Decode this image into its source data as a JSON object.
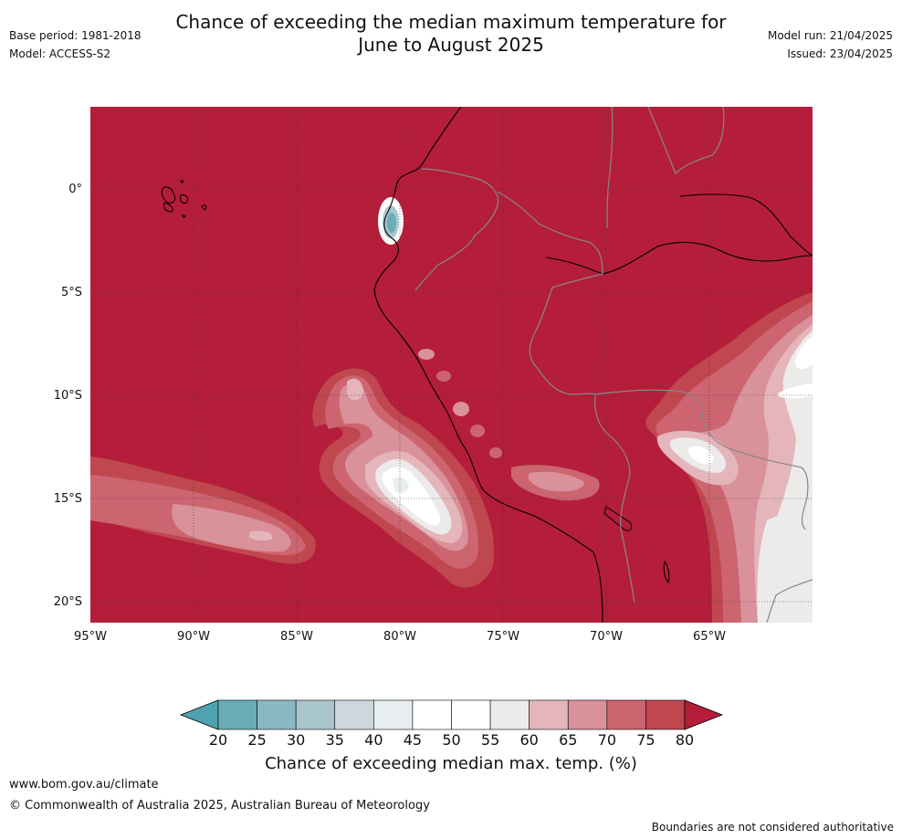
{
  "header": {
    "title_line1": "Chance of exceeding the median maximum temperature for",
    "title_line2": "June to August 2025",
    "base_period": "Base period: 1981-2018",
    "model": "Model: ACCESS-S2",
    "model_run": "Model run: 21/04/2025",
    "issued": "Issued: 23/04/2025"
  },
  "map": {
    "lat_labels": [
      "0°",
      "5°S",
      "10°S",
      "15°S",
      "20°S"
    ],
    "lon_labels": [
      "95°W",
      "90°W",
      "85°W",
      "80°W",
      "75°W",
      "70°W",
      "65°W"
    ],
    "land_colors": {
      "high": "#b41e3a",
      "c75": "#c0474f",
      "c70": "#cc6570",
      "c65": "#d9919a",
      "c60": "#e4b6bb",
      "c55": "#ecebea",
      "c50": "#ffffff",
      "c45": "#e8edf0",
      "c35": "#a8c6cc",
      "c25": "#6aacb8"
    }
  },
  "colorbar": {
    "ticks": [
      "20",
      "25",
      "30",
      "35",
      "40",
      "45",
      "50",
      "55",
      "60",
      "65",
      "70",
      "75",
      "80"
    ],
    "colors": [
      "#6aacb8",
      "#8ab8c2",
      "#a8c6cc",
      "#cdd8dc",
      "#e8edf0",
      "#ffffff",
      "#ffffff",
      "#ecebea",
      "#e4b6bb",
      "#d9919a",
      "#cc6570",
      "#c0474f"
    ],
    "under_color": "#4fa3b1",
    "over_color": "#b41e3a",
    "title": "Chance of exceeding median max. temp. (%)"
  },
  "footer": {
    "website": "www.bom.gov.au/climate",
    "copyright": "© Commonwealth of Australia 2025, Australian Bureau of Meteorology",
    "disclaimer": "Boundaries are not considered authoritative"
  }
}
